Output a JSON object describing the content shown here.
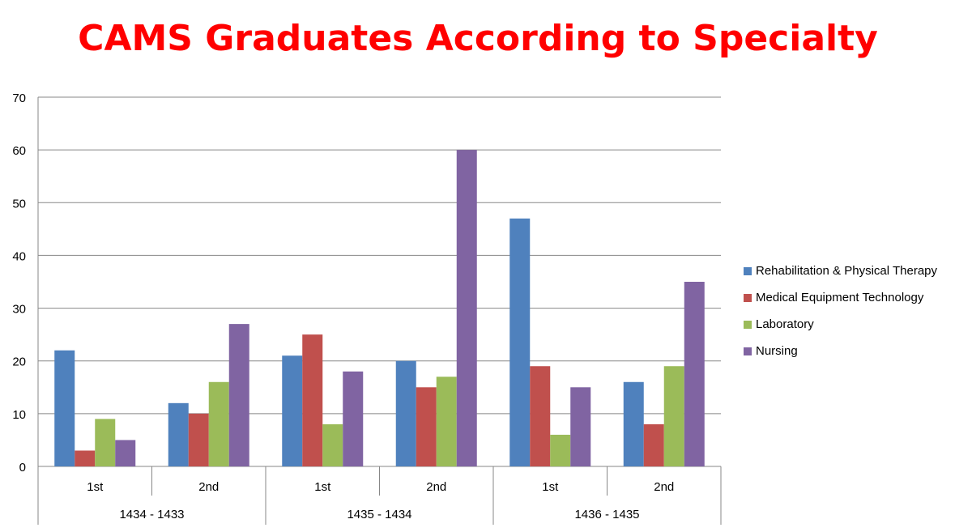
{
  "chart_data": {
    "type": "bar",
    "title": "CAMS Graduates According to Specialty",
    "categories": [
      {
        "sub": "1st",
        "group": "1434 - 1433"
      },
      {
        "sub": "2nd",
        "group": "1434 - 1433"
      },
      {
        "sub": "1st",
        "group": "1435 - 1434"
      },
      {
        "sub": "2nd",
        "group": "1435 - 1434"
      },
      {
        "sub": "1st",
        "group": "1436 - 1435"
      },
      {
        "sub": "2nd",
        "group": "1436 - 1435"
      }
    ],
    "groups": [
      "1434 - 1433",
      "1435 - 1434",
      "1436 - 1435"
    ],
    "series": [
      {
        "name": "Rehabilitation & Physical Therapy",
        "color": "#4f81bd",
        "values": [
          22,
          12,
          21,
          20,
          47,
          16
        ]
      },
      {
        "name": "Medical Equipment Technology",
        "color": "#c0504d",
        "values": [
          3,
          10,
          25,
          15,
          19,
          8
        ]
      },
      {
        "name": "Laboratory",
        "color": "#9bbb59",
        "values": [
          9,
          16,
          8,
          17,
          6,
          19
        ]
      },
      {
        "name": "Nursing",
        "color": "#8064a2",
        "values": [
          5,
          27,
          18,
          60,
          15,
          35
        ]
      }
    ],
    "ylim": [
      0,
      70
    ],
    "yticks": [
      0,
      10,
      20,
      30,
      40,
      50,
      60,
      70
    ],
    "grid": true,
    "legend_position": "right"
  }
}
